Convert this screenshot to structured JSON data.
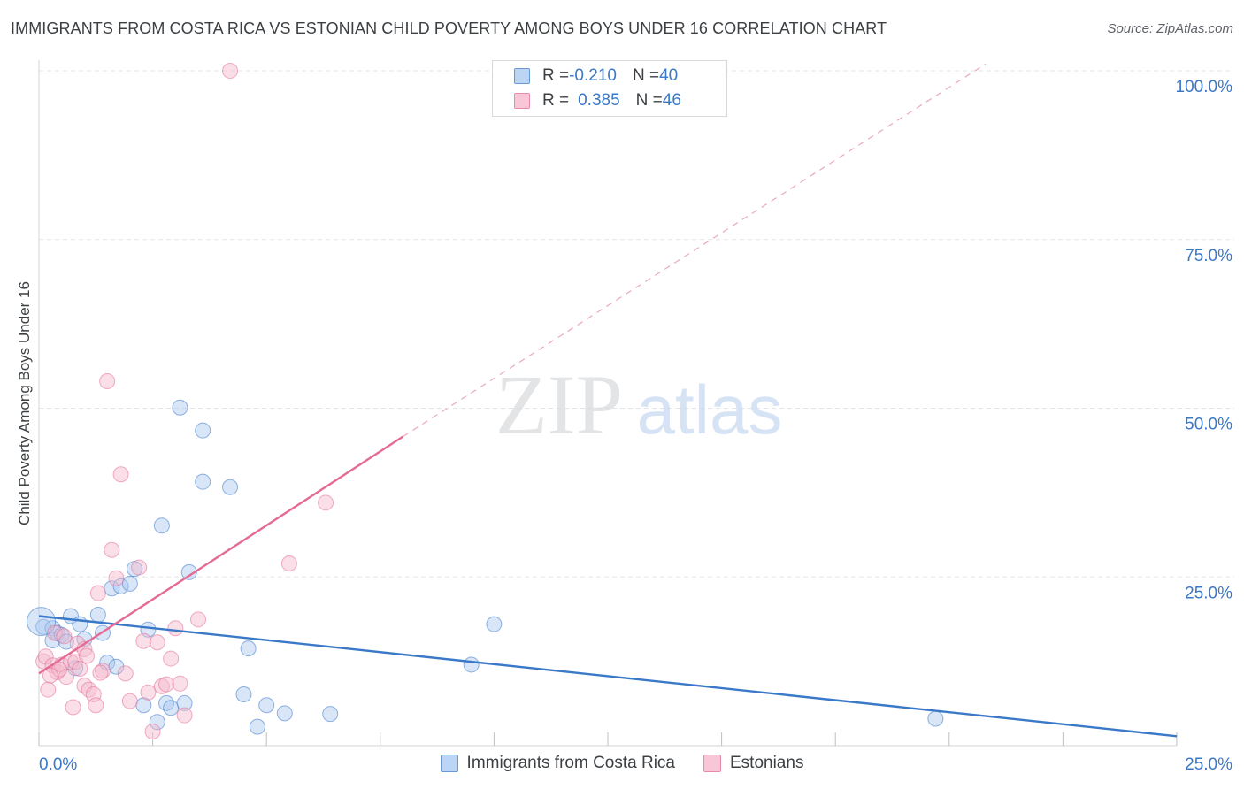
{
  "title": "IMMIGRANTS FROM COSTA RICA VS ESTONIAN CHILD POVERTY AMONG BOYS UNDER 16 CORRELATION CHART",
  "source": "Source: ZipAtlas.com",
  "watermark": {
    "zip": "ZIP",
    "atlas": "atlas"
  },
  "legend_top": [
    {
      "r_label": "R = ",
      "r_value": "-0.210",
      "n_label": "N = ",
      "n_value": "40"
    },
    {
      "r_label": "R = ",
      "r_value": "0.385",
      "n_label": "N = ",
      "n_value": "46"
    }
  ],
  "chart_data": {
    "type": "scatter",
    "title": "IMMIGRANTS FROM COSTA RICA VS ESTONIAN CHILD POVERTY AMONG BOYS UNDER 16 CORRELATION CHART",
    "xlabel": "",
    "ylabel": "Child Poverty Among Boys Under 16",
    "xlim": [
      0,
      25
    ],
    "ylim": [
      0,
      100
    ],
    "x_tick_labels": [
      "0.0%",
      "25.0%"
    ],
    "y_tick_labels": [
      "100.0%",
      "75.0%",
      "50.0%",
      "25.0%"
    ],
    "y_ticks": [
      100,
      75,
      50,
      25
    ],
    "grid": true,
    "legend_position": "bottom",
    "series": [
      {
        "name": "Immigrants from Costa Rica",
        "color": "#3a78c8",
        "fill": "#a9c8ef",
        "R": -0.21,
        "N": 40,
        "points": [
          [
            0.1,
            17.6
          ],
          [
            0.3,
            17.4
          ],
          [
            0.3,
            15.6
          ],
          [
            0.4,
            16.7
          ],
          [
            0.5,
            16.4
          ],
          [
            0.6,
            15.4
          ],
          [
            0.7,
            19.2
          ],
          [
            0.8,
            11.5
          ],
          [
            0.9,
            18.0
          ],
          [
            1.0,
            15.8
          ],
          [
            1.3,
            19.4
          ],
          [
            1.4,
            16.7
          ],
          [
            1.5,
            12.3
          ],
          [
            1.6,
            23.3
          ],
          [
            1.7,
            11.7
          ],
          [
            1.8,
            23.6
          ],
          [
            2.0,
            24.0
          ],
          [
            2.1,
            26.2
          ],
          [
            2.3,
            6.0
          ],
          [
            2.4,
            17.2
          ],
          [
            2.6,
            3.5
          ],
          [
            2.7,
            32.6
          ],
          [
            2.8,
            6.3
          ],
          [
            2.9,
            5.6
          ],
          [
            3.1,
            50.1
          ],
          [
            3.2,
            6.3
          ],
          [
            3.3,
            25.7
          ],
          [
            3.6,
            39.1
          ],
          [
            3.6,
            46.7
          ],
          [
            4.2,
            38.3
          ],
          [
            4.5,
            7.6
          ],
          [
            4.6,
            14.4
          ],
          [
            4.8,
            2.8
          ],
          [
            5.0,
            6.0
          ],
          [
            5.4,
            4.8
          ],
          [
            6.4,
            4.7
          ],
          [
            9.5,
            12.0
          ],
          [
            10.0,
            18.0
          ],
          [
            19.7,
            4.0
          ],
          [
            0.05,
            18.4
          ]
        ],
        "trend": {
          "x": [
            0,
            25
          ],
          "y": [
            19.2,
            1.4
          ]
        }
      },
      {
        "name": "Estonians",
        "color": "#e36b96",
        "fill": "#f5b7cb",
        "R": 0.385,
        "N": 46,
        "points": [
          [
            0.1,
            12.5
          ],
          [
            0.15,
            13.2
          ],
          [
            0.2,
            8.3
          ],
          [
            0.3,
            11.9
          ],
          [
            0.35,
            16.7
          ],
          [
            0.4,
            10.9
          ],
          [
            0.5,
            12.0
          ],
          [
            0.6,
            10.2
          ],
          [
            0.7,
            12.4
          ],
          [
            0.75,
            5.7
          ],
          [
            0.8,
            12.4
          ],
          [
            0.85,
            15.1
          ],
          [
            0.9,
            11.4
          ],
          [
            1.0,
            14.3
          ],
          [
            1.0,
            8.9
          ],
          [
            1.1,
            8.3
          ],
          [
            1.2,
            7.6
          ],
          [
            1.25,
            6.0
          ],
          [
            1.3,
            22.6
          ],
          [
            1.4,
            11.1
          ],
          [
            1.5,
            54.0
          ],
          [
            1.6,
            29.0
          ],
          [
            1.7,
            24.8
          ],
          [
            1.8,
            40.2
          ],
          [
            1.9,
            10.7
          ],
          [
            2.0,
            6.6
          ],
          [
            2.2,
            26.4
          ],
          [
            2.3,
            15.5
          ],
          [
            2.4,
            7.9
          ],
          [
            2.5,
            2.1
          ],
          [
            2.6,
            15.3
          ],
          [
            2.7,
            8.8
          ],
          [
            2.8,
            9.1
          ],
          [
            3.0,
            17.4
          ],
          [
            3.1,
            9.2
          ],
          [
            3.2,
            4.5
          ],
          [
            3.5,
            18.7
          ],
          [
            4.2,
            100.0
          ],
          [
            5.5,
            27.0
          ],
          [
            6.3,
            36.0
          ],
          [
            1.05,
            13.3
          ],
          [
            0.55,
            16.2
          ],
          [
            0.45,
            11.3
          ],
          [
            1.35,
            10.8
          ],
          [
            2.9,
            12.9
          ],
          [
            0.25,
            10.4
          ]
        ],
        "trend": {
          "x": [
            0,
            8.0
          ],
          "y": [
            10.7,
            45.8
          ]
        },
        "trend_extension": {
          "x": [
            8.0,
            20.8
          ],
          "y": [
            45.8,
            101.0
          ]
        }
      }
    ]
  }
}
